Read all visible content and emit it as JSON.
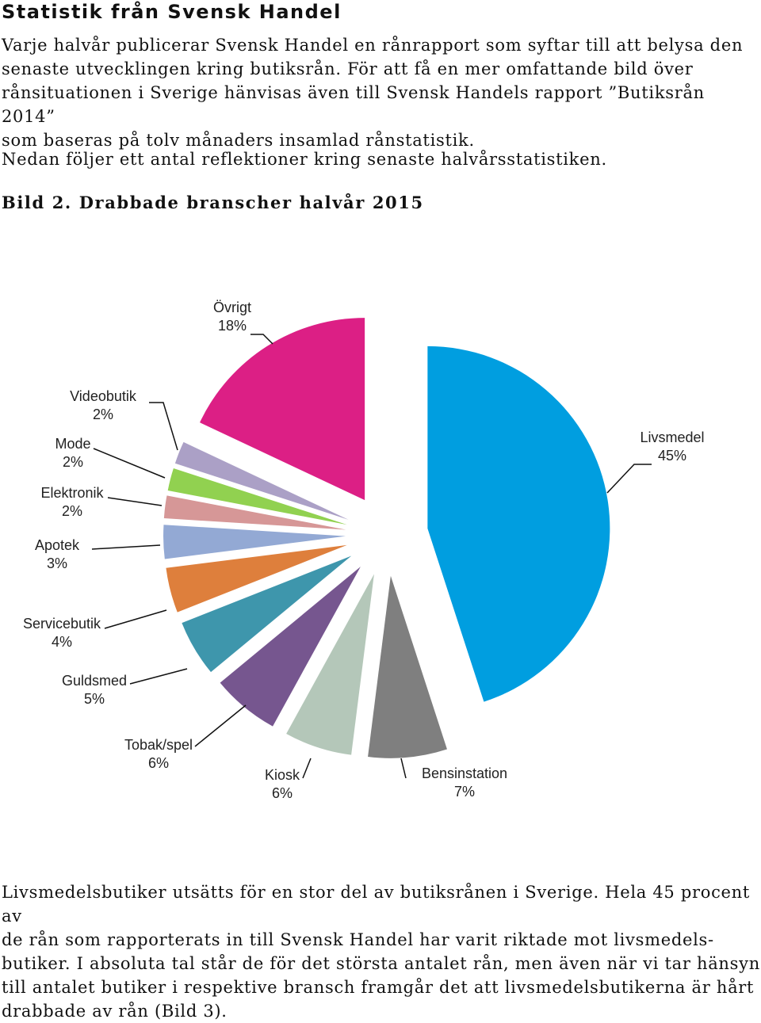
{
  "document": {
    "heading": "Statistik från Svensk Handel",
    "intro": "Varje halvår publicerar Svensk Handel en rånrapport som syftar till att belysa den\nsenaste utvecklingen kring butiksrån. För att få en mer omfattande bild över\nrånsituationen i Sverige hänvisas även till Svensk Handels rapport ”Butiksrån 2014”\nsom baseras på tolv månaders insamlad rånstatistik.",
    "reflection": "Nedan följer ett antal reflektioner kring senaste halvårsstatistiken.",
    "figure_caption": "Bild 2. Drabbade branscher halvår 2015",
    "conclusion": "Livsmedelsbutiker utsätts för en stor del av butiksrånen i Sverige. Hela 45 procent av\nde rån som rapporterats in till Svensk Handel har varit riktade mot livsmedels-\nbutiker. I absoluta tal står de för det största antalet rån, men även när vi tar hänsyn\ntill antalet butiker i respektive bransch framgår det att livsmedelsbutikerna är hårt\ndrabbade av rån (Bild 3)."
  },
  "chart_data": {
    "type": "pie",
    "unit": "%",
    "slices": [
      {
        "label": "Livsmedel",
        "value": 45,
        "value_label": "45%",
        "color": "#009ee0"
      },
      {
        "label": "Bensinstation",
        "value": 7,
        "value_label": "7%",
        "color": "#7f7f7f"
      },
      {
        "label": "Kiosk",
        "value": 6,
        "value_label": "6%",
        "color": "#b4c7b9"
      },
      {
        "label": "Tobak/spel",
        "value": 6,
        "value_label": "6%",
        "color": "#76568f"
      },
      {
        "label": "Guldsmed",
        "value": 5,
        "value_label": "5%",
        "color": "#3e96ac"
      },
      {
        "label": "Servicebutik",
        "value": 4,
        "value_label": "4%",
        "color": "#de7f3c"
      },
      {
        "label": "Apotek",
        "value": 3,
        "value_label": "3%",
        "color": "#93a9d4"
      },
      {
        "label": "Elektronik",
        "value": 2,
        "value_label": "2%",
        "color": "#d69797"
      },
      {
        "label": "Mode",
        "value": 2,
        "value_label": "2%",
        "color": "#91d150"
      },
      {
        "label": "Videobutik",
        "value": 2,
        "value_label": "2%",
        "color": "#aba0c6"
      },
      {
        "label": "Övrigt",
        "value": 18,
        "value_label": "18%",
        "color": "#dc1f85"
      }
    ]
  }
}
